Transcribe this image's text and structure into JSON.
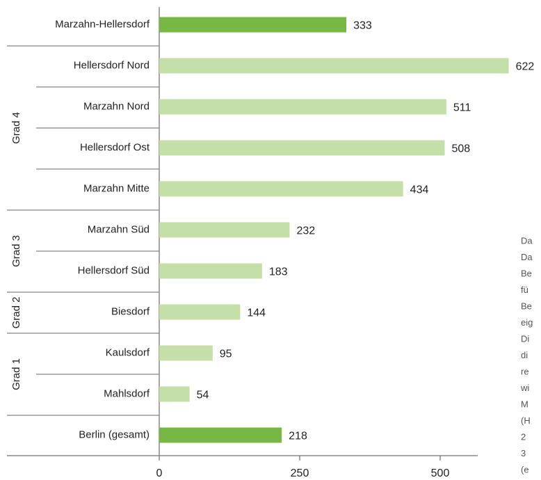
{
  "chart_data": {
    "type": "hbar",
    "categories": [
      "Marzahn-Hellersdorf",
      "Hellersdorf Nord",
      "Marzahn Nord",
      "Hellersdorf Ost",
      "Marzahn Mitte",
      "Marzahn Süd",
      "Hellersdorf Süd",
      "Biesdorf",
      "Kaulsdorf",
      "Mahlsdorf",
      "Berlin (gesamt)"
    ],
    "values": [
      333,
      622,
      511,
      508,
      434,
      232,
      183,
      144,
      95,
      54,
      218
    ],
    "colors": [
      "#76b843",
      "#c5dfa8",
      "#c5dfa8",
      "#c5dfa8",
      "#c5dfa8",
      "#c5dfa8",
      "#c5dfa8",
      "#c5dfa8",
      "#c5dfa8",
      "#c5dfa8",
      "#76b843"
    ],
    "groups": [
      {
        "label": "Grad 4",
        "first": 1,
        "last": 4
      },
      {
        "label": "Grad 3",
        "first": 5,
        "last": 6
      },
      {
        "label": "Grad 2",
        "first": 7,
        "last": 7
      },
      {
        "label": "Grad 1",
        "first": 8,
        "last": 9
      }
    ],
    "xlim": [
      0,
      500
    ],
    "xticks": [
      0,
      250,
      500
    ],
    "side_note_lines": [
      "Da",
      "Da",
      "Be",
      "fü",
      "Be",
      "eig",
      "Di",
      "di",
      "re",
      "wi",
      "M",
      "(H",
      "2",
      "3",
      "(e"
    ]
  }
}
